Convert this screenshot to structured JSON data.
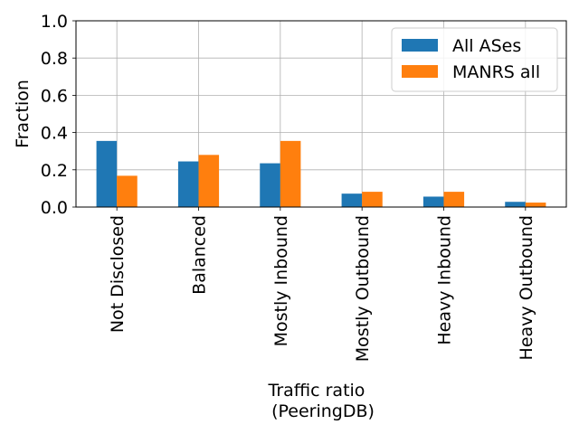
{
  "chart_data": {
    "type": "bar",
    "title": "",
    "xlabel_lines": [
      "Traffic ratio",
      "(PeeringDB)"
    ],
    "ylabel": "Fraction",
    "ylim": [
      0,
      1.0
    ],
    "yticks": [
      0.0,
      0.2,
      0.4,
      0.6,
      0.8,
      1.0
    ],
    "ytick_labels": [
      "0.0",
      "0.2",
      "0.4",
      "0.6",
      "0.8",
      "1.0"
    ],
    "grid": true,
    "legend_position": "top-right",
    "categories": [
      "Not Disclosed",
      "Balanced",
      "Mostly Inbound",
      "Mostly Outbound",
      "Heavy Inbound",
      "Heavy Outbound"
    ],
    "series": [
      {
        "name": "All ASes",
        "color": "#1f77b4",
        "values": [
          0.355,
          0.245,
          0.235,
          0.072,
          0.056,
          0.028
        ]
      },
      {
        "name": "MANRS all",
        "color": "#ff7f0e",
        "values": [
          0.168,
          0.28,
          0.355,
          0.082,
          0.082,
          0.024
        ]
      }
    ]
  }
}
